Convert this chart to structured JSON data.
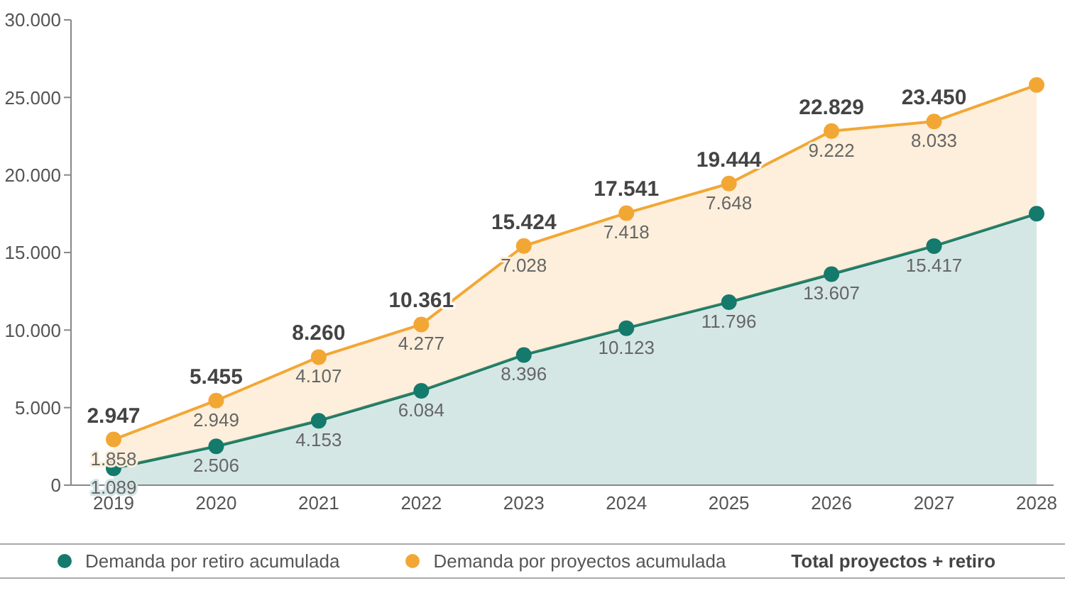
{
  "chart_data": {
    "type": "area",
    "categories": [
      "2019",
      "2020",
      "2021",
      "2022",
      "2023",
      "2024",
      "2025",
      "2026",
      "2027",
      "2028"
    ],
    "series": [
      {
        "name": "Demanda por retiro acumulada",
        "color": "#137a6c",
        "values": [
          1089,
          2506,
          4153,
          6084,
          8396,
          10123,
          11796,
          13607,
          15417,
          17500
        ],
        "value_labels": [
          "1.089",
          "2.506",
          "4.153",
          "6.084",
          "8.396",
          "10.123",
          "11.796",
          "13.607",
          "15.417",
          null
        ]
      },
      {
        "name": "Demanda por proyectos acumulada",
        "color": "#f2a735",
        "values": [
          1858,
          2949,
          4107,
          4277,
          7028,
          7418,
          7648,
          9222,
          8033,
          8300
        ],
        "value_labels": [
          "1.858",
          "2.949",
          "4.107",
          "4.277",
          "7.028",
          "7.418",
          "7.648",
          "9.222",
          "8.033",
          null
        ]
      }
    ],
    "stacked": true,
    "totals": [
      "2.947",
      "5.455",
      "8.260",
      "10.361",
      "15.424",
      "17.541",
      "19.444",
      "22.829",
      "23.450",
      null
    ],
    "ylim": [
      0,
      30000
    ],
    "yticks": [
      0,
      {
        "value": 5000,
        "label": "5.000"
      },
      {
        "value": 10000,
        "label": "10.000"
      },
      {
        "value": 15000,
        "label": "15.000"
      },
      {
        "value": 20000,
        "label": "20.000"
      },
      {
        "value": 25000,
        "label": "25.000"
      },
      {
        "value": 30000,
        "label": "30.000"
      }
    ],
    "annotations": [
      "Total proyectos + retiro"
    ],
    "legend": "bottom",
    "marker": "circle"
  }
}
